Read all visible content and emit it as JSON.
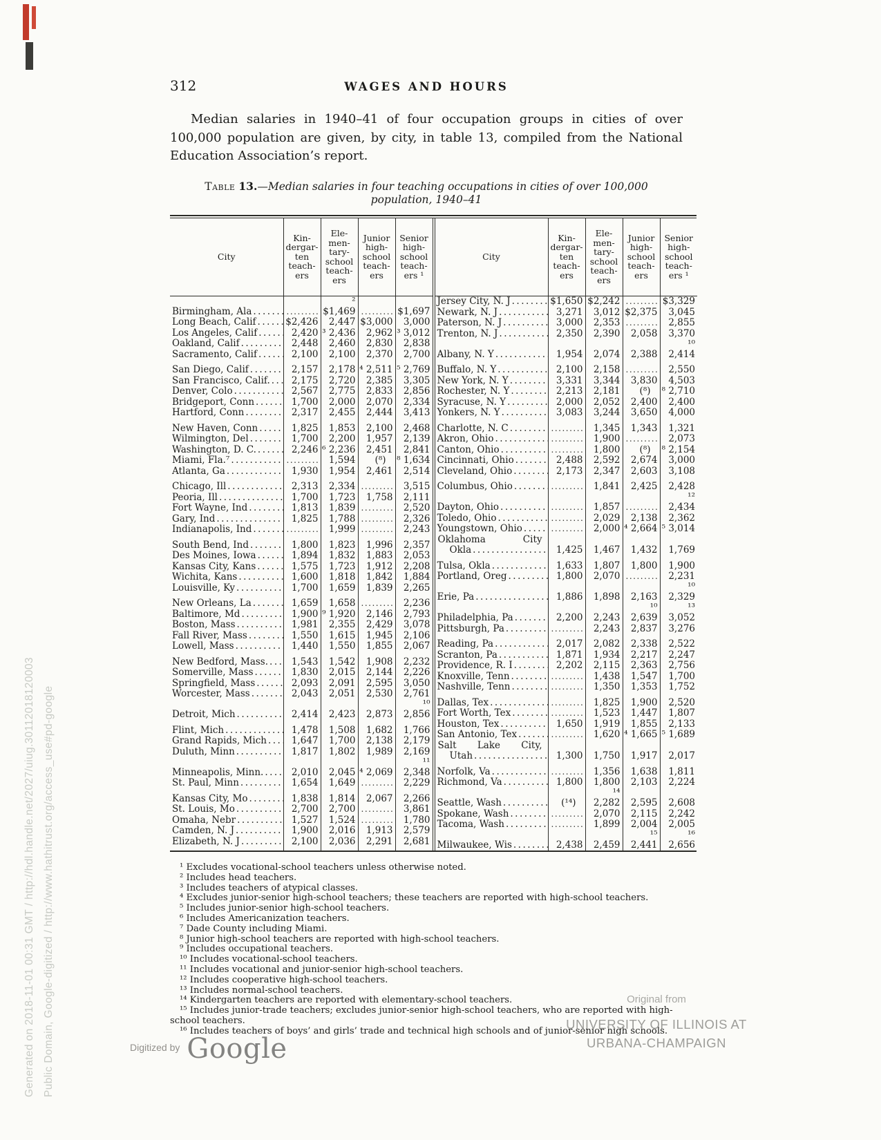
{
  "page": {
    "number": "312",
    "running_head": "WAGES AND HOURS",
    "intro": "Median salaries in 1940–41 of four occupation groups in cities of over 100,000 population are given, by city, in table 13, compiled from the National Education Association’s report."
  },
  "colors": {
    "ink": "#1c1c1a",
    "paper": "#fbfbf8",
    "stamp_red": "#c23b2c",
    "faded_gray": "#9d9d99"
  },
  "table": {
    "caption_smallcaps": "Table",
    "caption_number": "13.",
    "caption_rest": "—Median salaries in four teaching occupations in cities of over 100,000",
    "caption_line2": "population, 1940–41",
    "col_headers": {
      "city": "City",
      "cols": [
        "Kin-\ndergar-\nten\nteach-\ners",
        "Ele-\nmen-\ntary-\nschool\nteach-\ners",
        "Junior\nhigh-\nschool\nteach-\ners",
        "Senior\nhigh-\nschool\nteach-\ners ¹"
      ]
    },
    "left_groups": [
      [
        {
          "city": "Birmingham, Ala",
          "v": [
            "",
            "² $1,469",
            "",
            "$1,697"
          ]
        },
        {
          "city": "Long Beach, Calif",
          "v": [
            "$2,426",
            "2,447",
            "$3,000",
            "3,000"
          ]
        },
        {
          "city": "Los Angeles, Calif",
          "v": [
            "2,420",
            "³ 2,436",
            "2,962",
            "³ 3,012"
          ]
        },
        {
          "city": "Oakland, Calif",
          "v": [
            "2,448",
            "2,460",
            "2,830",
            "2,838"
          ]
        },
        {
          "city": "Sacramento, Calif",
          "v": [
            "2,100",
            "2,100",
            "2,370",
            "2,700"
          ]
        }
      ],
      [
        {
          "city": "San Diego, Calif",
          "v": [
            "2,157",
            "2,178",
            "⁴ 2,511",
            "⁵ 2,769"
          ]
        },
        {
          "city": "San Francisco, Calif.",
          "v": [
            "2,175",
            "2,720",
            "2,385",
            "3,305"
          ]
        },
        {
          "city": "Denver, Colo",
          "v": [
            "2,567",
            "2,775",
            "2,833",
            "2,856"
          ]
        },
        {
          "city": "Bridgeport, Conn",
          "v": [
            "1,700",
            "2,000",
            "2,070",
            "2,334"
          ]
        },
        {
          "city": "Hartford, Conn",
          "v": [
            "2,317",
            "2,455",
            "2,444",
            "3,413"
          ]
        }
      ],
      [
        {
          "city": "New Haven, Conn",
          "v": [
            "1,825",
            "1,853",
            "2,100",
            "2,468"
          ]
        },
        {
          "city": "Wilmington, Del",
          "v": [
            "1,700",
            "2,200",
            "1,957",
            "2,139"
          ]
        },
        {
          "city": "Washington, D. C.",
          "v": [
            "2,246",
            "⁶ 2,236",
            "2,451",
            "2,841"
          ]
        },
        {
          "city": "Miami, Fla.⁷",
          "v": [
            "",
            "1,594",
            "(⁸)",
            "⁸ 1,634"
          ]
        },
        {
          "city": "Atlanta, Ga",
          "v": [
            "1,930",
            "1,954",
            "2,461",
            "2,514"
          ]
        }
      ],
      [
        {
          "city": "Chicago, Ill",
          "v": [
            "2,313",
            "2,334",
            "",
            "3,515"
          ]
        },
        {
          "city": "Peoria, Ill",
          "v": [
            "1,700",
            "1,723",
            "1,758",
            "2,111"
          ]
        },
        {
          "city": "Fort Wayne, Ind",
          "v": [
            "1,813",
            "1,839",
            "",
            "2,520"
          ]
        },
        {
          "city": "Gary, Ind",
          "v": [
            "1,825",
            "1,788",
            "",
            "2,326"
          ]
        },
        {
          "city": "Indianapolis, Ind",
          "v": [
            "",
            "1,999",
            "",
            "2,243"
          ]
        }
      ],
      [
        {
          "city": "South Bend, Ind",
          "v": [
            "1,800",
            "1,823",
            "1,996",
            "2,357"
          ]
        },
        {
          "city": "Des Moines, Iowa",
          "v": [
            "1,894",
            "1,832",
            "1,883",
            "2,053"
          ]
        },
        {
          "city": "Kansas City, Kans",
          "v": [
            "1,575",
            "1,723",
            "1,912",
            "2,208"
          ]
        },
        {
          "city": "Wichita, Kans",
          "v": [
            "1,600",
            "1,818",
            "1,842",
            "1,884"
          ]
        },
        {
          "city": "Louisville, Ky",
          "v": [
            "1,700",
            "1,659",
            "1,839",
            "2,265"
          ]
        }
      ],
      [
        {
          "city": "New Orleans, La",
          "v": [
            "1,659",
            "1,658",
            "",
            "2,236"
          ]
        },
        {
          "city": "Baltimore, Md",
          "v": [
            "1,900",
            "⁹ 1,920",
            "2,146",
            "2,793"
          ]
        },
        {
          "city": "Boston, Mass",
          "v": [
            "1,981",
            "2,355",
            "2,429",
            "3,078"
          ]
        },
        {
          "city": "Fall River, Mass",
          "v": [
            "1,550",
            "1,615",
            "1,945",
            "2,106"
          ]
        },
        {
          "city": "Lowell, Mass",
          "v": [
            "1,440",
            "1,550",
            "1,855",
            "2,067"
          ]
        }
      ],
      [
        {
          "city": "New Bedford, Mass.",
          "v": [
            "1,543",
            "1,542",
            "1,908",
            "2,232"
          ]
        },
        {
          "city": "Somerville, Mass",
          "v": [
            "1,830",
            "2,015",
            "2,144",
            "2,226"
          ]
        },
        {
          "city": "Springfield, Mass",
          "v": [
            "2,093",
            "2,091",
            "2,595",
            "3,050"
          ]
        },
        {
          "city": "Worcester, Mass",
          "v": [
            "2,043",
            "2,051",
            "2,530",
            "2,761"
          ]
        },
        {
          "city": "Detroit, Mich",
          "v": [
            "2,414",
            "2,423",
            "2,873",
            "¹⁰ 2,856"
          ]
        }
      ],
      [
        {
          "city": "Flint, Mich",
          "v": [
            "1,478",
            "1,508",
            "1,682",
            "1,766"
          ]
        },
        {
          "city": "Grand Rapids, Mich",
          "v": [
            "1,647",
            "1,700",
            "2,138",
            "2,179"
          ]
        },
        {
          "city": "Duluth, Minn",
          "v": [
            "1,817",
            "1,802",
            "1,989",
            "2,169"
          ]
        },
        {
          "city": "Minneapolis, Minn.",
          "v": [
            "2,010",
            "2,045",
            "⁴ 2,069",
            "¹¹ 2,348"
          ]
        },
        {
          "city": "St. Paul, Minn",
          "v": [
            "1,654",
            "1,649",
            "",
            "2,229"
          ]
        }
      ],
      [
        {
          "city": "Kansas City, Mo",
          "v": [
            "1,838",
            "1,814",
            "2,067",
            "2,266"
          ]
        },
        {
          "city": "St. Louis, Mo",
          "v": [
            "2,700",
            "2,700",
            "",
            "3,861"
          ]
        },
        {
          "city": "Omaha, Nebr",
          "v": [
            "1,527",
            "1,524",
            "",
            "1,780"
          ]
        },
        {
          "city": "Camden, N. J",
          "v": [
            "1,900",
            "2,016",
            "1,913",
            "2,579"
          ]
        },
        {
          "city": "Elizabeth, N. J",
          "v": [
            "2,100",
            "2,036",
            "2,291",
            "2,681"
          ]
        }
      ]
    ],
    "right_groups": [
      [
        {
          "city": "Jersey City, N. J",
          "v": [
            "$1,650",
            "$2,242",
            "",
            "$3,329"
          ]
        },
        {
          "city": "Newark, N. J",
          "v": [
            "3,271",
            "3,012",
            "$2,375",
            "3,045"
          ]
        },
        {
          "city": "Paterson, N. J",
          "v": [
            "3,000",
            "2,353",
            "",
            "2,855"
          ]
        },
        {
          "city": "Trenton, N. J",
          "v": [
            "2,350",
            "2,390",
            "2,058",
            "3,370"
          ]
        },
        {
          "city": "Albany, N. Y",
          "v": [
            "1,954",
            "2,074",
            "2,388",
            "¹⁰ 2,414"
          ]
        }
      ],
      [
        {
          "city": "Buffalo, N. Y",
          "v": [
            "2,100",
            "2,158",
            "",
            "2,550"
          ]
        },
        {
          "city": "New York, N. Y",
          "v": [
            "3,331",
            "3,344",
            "3,830",
            "4,503"
          ]
        },
        {
          "city": "Rochester, N. Y",
          "v": [
            "2,213",
            "2,181",
            "(⁸)",
            "⁸ 2,710"
          ]
        },
        {
          "city": "Syracuse, N. Y",
          "v": [
            "2,000",
            "2,052",
            "2,400",
            "2,400"
          ]
        },
        {
          "city": "Yonkers, N. Y",
          "v": [
            "3,083",
            "3,244",
            "3,650",
            "4,000"
          ]
        }
      ],
      [
        {
          "city": "Charlotte, N. C",
          "v": [
            "",
            "1,345",
            "1,343",
            "1,321"
          ]
        },
        {
          "city": "Akron, Ohio",
          "v": [
            "",
            "1,900",
            "",
            "2,073"
          ]
        },
        {
          "city": "Canton, Ohio",
          "v": [
            "",
            "1,800",
            "(⁸)",
            "⁸ 2,154"
          ]
        },
        {
          "city": "Cincinnati, Ohio",
          "v": [
            "2,488",
            "2,592",
            "2,674",
            "3,000"
          ]
        },
        {
          "city": "Cleveland, Ohio",
          "v": [
            "2,173",
            "2,347",
            "2,603",
            "3,108"
          ]
        }
      ],
      [
        {
          "city": "Columbus, Ohio",
          "v": [
            "",
            "1,841",
            "2,425",
            "2,428"
          ]
        },
        {
          "city": "Dayton, Ohio",
          "v": [
            "",
            "1,857",
            "",
            "¹² 2,434"
          ]
        },
        {
          "city": "Toledo, Ohio",
          "v": [
            "",
            "2,029",
            "2,138",
            "2,362"
          ]
        },
        {
          "city": "Youngstown, Ohio",
          "v": [
            "",
            "2,000",
            "⁴ 2,664",
            "⁵ 3,014"
          ]
        },
        {
          "city": "Oklahoma City",
          "city2": "Okla",
          "v": [
            "1,425",
            "1,467",
            "1,432",
            "1,769"
          ]
        }
      ],
      [
        {
          "city": "Tulsa, Okla",
          "v": [
            "1,633",
            "1,807",
            "1,800",
            "1,900"
          ]
        },
        {
          "city": "Portland, Oreg",
          "v": [
            "1,800",
            "2,070",
            "",
            "2,231"
          ]
        },
        {
          "city": "Erie, Pa",
          "v": [
            "1,886",
            "1,898",
            "2,163",
            "¹⁰ 2,329"
          ]
        },
        {
          "city": "Philadelphia, Pa",
          "v": [
            "2,200",
            "2,243",
            "¹⁰ 2,639",
            "¹³ 3,052"
          ]
        },
        {
          "city": "Pittsburgh, Pa",
          "v": [
            "",
            "2,243",
            "2,837",
            "3,276"
          ]
        }
      ],
      [
        {
          "city": "Reading, Pa",
          "v": [
            "2,017",
            "2,082",
            "2,338",
            "2,522"
          ]
        },
        {
          "city": "Scranton, Pa",
          "v": [
            "1,871",
            "1,934",
            "2,217",
            "2,247"
          ]
        },
        {
          "city": "Providence, R. I",
          "v": [
            "2,202",
            "2,115",
            "2,363",
            "2,756"
          ]
        },
        {
          "city": "Knoxville, Tenn",
          "v": [
            "",
            "1,438",
            "1,547",
            "1,700"
          ]
        },
        {
          "city": "Nashville, Tenn",
          "v": [
            "",
            "1,350",
            "1,353",
            "1,752"
          ]
        }
      ],
      [
        {
          "city": "Dallas, Tex",
          "v": [
            "",
            "1,825",
            "1,900",
            "2,520"
          ]
        },
        {
          "city": "Fort Worth, Tex",
          "v": [
            "",
            "1,523",
            "1,447",
            "1,807"
          ]
        },
        {
          "city": "Houston, Tex",
          "v": [
            "1,650",
            "1,919",
            "1,855",
            "2,133"
          ]
        },
        {
          "city": "San Antonio, Tex",
          "v": [
            "",
            "1,620",
            "⁴ 1,665",
            "⁵ 1,689"
          ]
        },
        {
          "city": "Salt Lake City,",
          "city2": "Utah",
          "v": [
            "1,300",
            "1,750",
            "1,917",
            "2,017"
          ]
        }
      ],
      [
        {
          "city": "Norfolk, Va",
          "v": [
            "",
            "1,356",
            "1,638",
            "1,811"
          ]
        },
        {
          "city": "Richmond, Va",
          "v": [
            "1,800",
            "1,800",
            "2,103",
            "2,224"
          ]
        },
        {
          "city": "Seattle, Wash",
          "v": [
            "(¹⁴)",
            "¹⁴ 2,282",
            "2,595",
            "2,608"
          ]
        },
        {
          "city": "Spokane, Wash",
          "v": [
            "",
            "2,070",
            "2,115",
            "2,242"
          ]
        },
        {
          "city": "Tacoma, Wash",
          "v": [
            "",
            "1,899",
            "2,004",
            "2,005"
          ]
        },
        {
          "city": "Milwaukee, Wis",
          "v": [
            "2,438",
            "2,459",
            "¹⁵ 2,441",
            "¹⁶ 2,656"
          ]
        }
      ]
    ]
  },
  "footnotes": [
    "¹ Excludes vocational-school teachers unless otherwise noted.",
    "² Includes head teachers.",
    "³ Includes teachers of atypical classes.",
    "⁴ Excludes junior-senior high-school teachers; these teachers are reported with high-school teachers.",
    "⁵ Includes junior-senior high-school teachers.",
    "⁶ Includes Americanization teachers.",
    "⁷ Dade County including Miami.",
    "⁸ Junior high-school teachers are reported with high-school teachers.",
    "⁹ Includes occupational teachers.",
    "¹⁰ Includes vocational-school teachers.",
    "¹¹ Includes vocational and junior-senior high-school teachers.",
    "¹² Includes cooperative high-school teachers.",
    "¹³ Includes normal-school teachers.",
    "¹⁴ Kindergarten teachers are reported with elementary-school teachers.",
    "¹⁵ Includes junior-trade teachers; excludes junior-senior high-school teachers, who are reported with high-school teachers.",
    "¹⁶ Includes teachers of boys’ and girls’ trade and technical high schools and of junior-senior high schools."
  ],
  "footer": {
    "digitized_prefix": "Digitized by",
    "google_logo": "Google",
    "original_from": "Original from",
    "university_line1": "UNIVERSITY OF ILLINOIS AT",
    "university_line2": "URBANA-CHAMPAIGN"
  },
  "sidebar": {
    "line1": "Generated on 2018-11-01 00:31 GMT  /  http://hdl.handle.net/2027/uiug.30112018120003",
    "line2": "Public Domain, Google-digitized  /  http://www.hathitrust.org/access_use#pd-google"
  }
}
